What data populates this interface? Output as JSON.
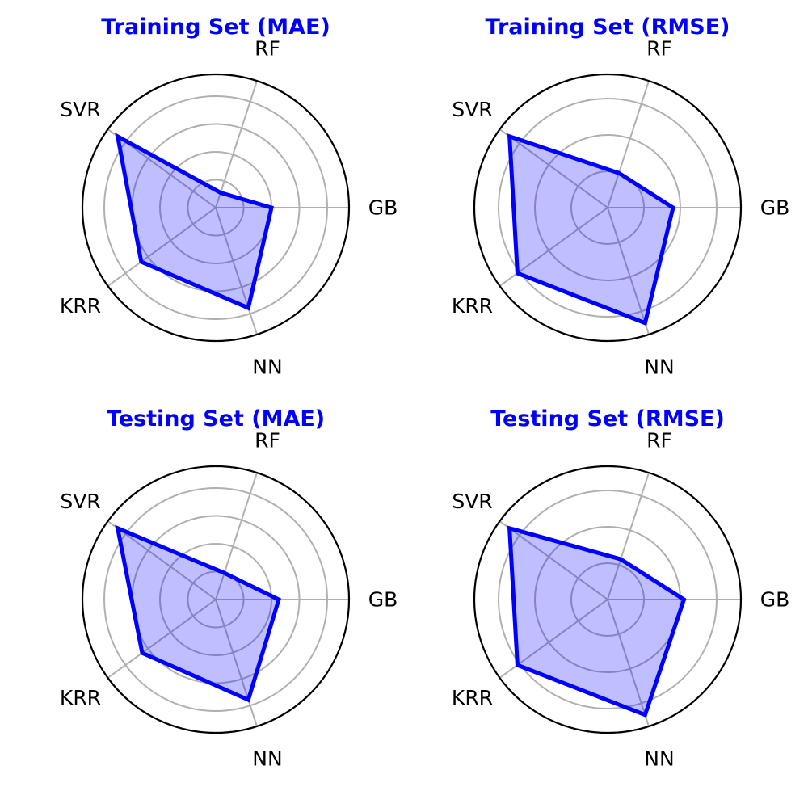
{
  "colors": {
    "title": "#0000ff",
    "line": "#0000ff",
    "fill": "#0000ff",
    "fill_opacity": 0.25,
    "grid": "#b0b0b0",
    "frame": "#000000"
  },
  "chart_data": [
    {
      "type": "radar",
      "title": "Training Set (MAE)",
      "categories": [
        "GB",
        "RF",
        "SVR",
        "KRR",
        "NN"
      ],
      "series": [
        {
          "values": [
            0.46,
            0.13,
            1.0,
            0.76,
            0.87
          ]
        }
      ],
      "rlim": [
        0,
        1.1
      ],
      "grid_rings": [
        0.23,
        0.46,
        0.69,
        0.92
      ],
      "grid": true
    },
    {
      "type": "radar",
      "title": "Training Set (RMSE)",
      "categories": [
        "GB",
        "RF",
        "SVR",
        "KRR",
        "NN"
      ],
      "series": [
        {
          "values": [
            0.54,
            0.3,
            1.0,
            0.92,
            1.0
          ]
        }
      ],
      "rlim": [
        0,
        1.1
      ],
      "grid_rings": [
        0.3,
        0.6,
        0.9
      ],
      "grid": true
    },
    {
      "type": "radar",
      "title": "Testing Set (MAE)",
      "categories": [
        "GB",
        "RF",
        "SVR",
        "KRR",
        "NN"
      ],
      "series": [
        {
          "values": [
            0.52,
            0.23,
            1.0,
            0.75,
            0.87
          ]
        }
      ],
      "rlim": [
        0,
        1.1
      ],
      "grid_rings": [
        0.23,
        0.46,
        0.69,
        0.92
      ],
      "grid": true
    },
    {
      "type": "radar",
      "title": "Testing Set (RMSE)",
      "categories": [
        "GB",
        "RF",
        "SVR",
        "KRR",
        "NN"
      ],
      "series": [
        {
          "values": [
            0.63,
            0.35,
            1.0,
            0.92,
            1.0
          ]
        }
      ],
      "rlim": [
        0,
        1.1
      ],
      "grid_rings": [
        0.3,
        0.6,
        0.9
      ],
      "grid": true
    }
  ]
}
